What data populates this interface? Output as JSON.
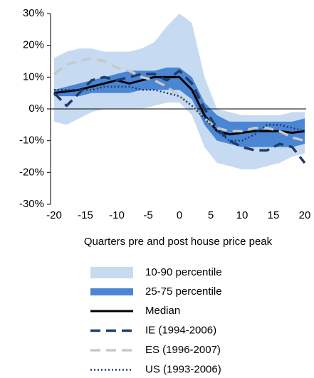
{
  "chart_data": {
    "type": "line",
    "x_label": "Quarters pre and post house price peak",
    "x": [
      -20,
      -18,
      -16,
      -14,
      -12,
      -10,
      -8,
      -6,
      -4,
      -2,
      0,
      2,
      4,
      6,
      8,
      10,
      12,
      14,
      16,
      18,
      20
    ],
    "xlim": [
      -20,
      20
    ],
    "xticks": [
      -20,
      -15,
      -10,
      -5,
      0,
      5,
      10,
      15,
      20
    ],
    "ylim": [
      -30,
      30
    ],
    "yticks": [
      {
        "value": -30,
        "label": "-30%"
      },
      {
        "value": -20,
        "label": "-20%"
      },
      {
        "value": -10,
        "label": "-10%"
      },
      {
        "value": 0,
        "label": "0%"
      },
      {
        "value": 10,
        "label": "10%"
      },
      {
        "value": 20,
        "label": "20%"
      },
      {
        "value": 30,
        "label": "30%"
      }
    ],
    "bands": [
      {
        "name": "10-90 percentile",
        "color": "#c6dbf2",
        "lower": [
          -4,
          -5,
          -3,
          -1,
          0,
          0,
          0,
          0,
          1,
          2,
          2,
          -2,
          -12,
          -17,
          -18,
          -19,
          -19,
          -18,
          -17,
          -15,
          -14
        ],
        "upper": [
          16,
          18,
          19,
          19,
          18,
          18,
          18,
          19,
          21,
          26,
          30,
          27,
          10,
          0,
          -1,
          -2,
          -2,
          -2,
          -2,
          -1,
          -1
        ]
      },
      {
        "name": "25-75 percentile",
        "color": "#4a86d4",
        "lower": [
          4,
          4,
          4,
          5,
          5,
          5,
          5,
          6,
          6,
          6,
          6,
          3,
          -5,
          -10,
          -11,
          -12,
          -12,
          -12,
          -12,
          -12,
          -11
        ],
        "upper": [
          6,
          7,
          8,
          9,
          10,
          11,
          12,
          12,
          12,
          13,
          13,
          10,
          2,
          -2,
          -4,
          -4,
          -4,
          -4,
          -4,
          -4,
          -3
        ]
      }
    ],
    "series": [
      {
        "name": "Median",
        "color": "#000000",
        "dash": "solid",
        "values": [
          5,
          5.5,
          6,
          7,
          8,
          9,
          8,
          9,
          10,
          10,
          10,
          6,
          -2,
          -7,
          -8,
          -7.5,
          -7,
          -7,
          -7,
          -7.5,
          -7
        ]
      },
      {
        "name": "IE (1994-2006)",
        "color": "#1f3d6b",
        "dash": "dashed",
        "values": [
          5,
          1,
          5,
          9,
          10,
          9,
          10,
          11,
          11,
          9,
          12,
          8,
          0,
          -6,
          -10,
          -12,
          -13,
          -13,
          -11,
          -12,
          -17
        ]
      },
      {
        "name": "ES (1996-2007)",
        "color": "#c8c8c8",
        "dash": "dashed",
        "values": [
          11,
          14,
          15,
          16,
          15,
          13,
          12,
          10,
          9,
          7,
          4,
          1,
          -3,
          -6,
          -7,
          -7,
          -6,
          -6,
          -7,
          -9,
          -10
        ]
      },
      {
        "name": "US (1993-2006)",
        "color": "#1f3d6b",
        "dash": "dotted",
        "values": [
          6,
          6,
          6,
          6,
          7,
          7,
          7,
          6,
          6,
          5,
          4,
          1,
          -3,
          -7,
          -10,
          -10,
          -8,
          -5,
          -5,
          -6,
          -7
        ]
      }
    ]
  }
}
